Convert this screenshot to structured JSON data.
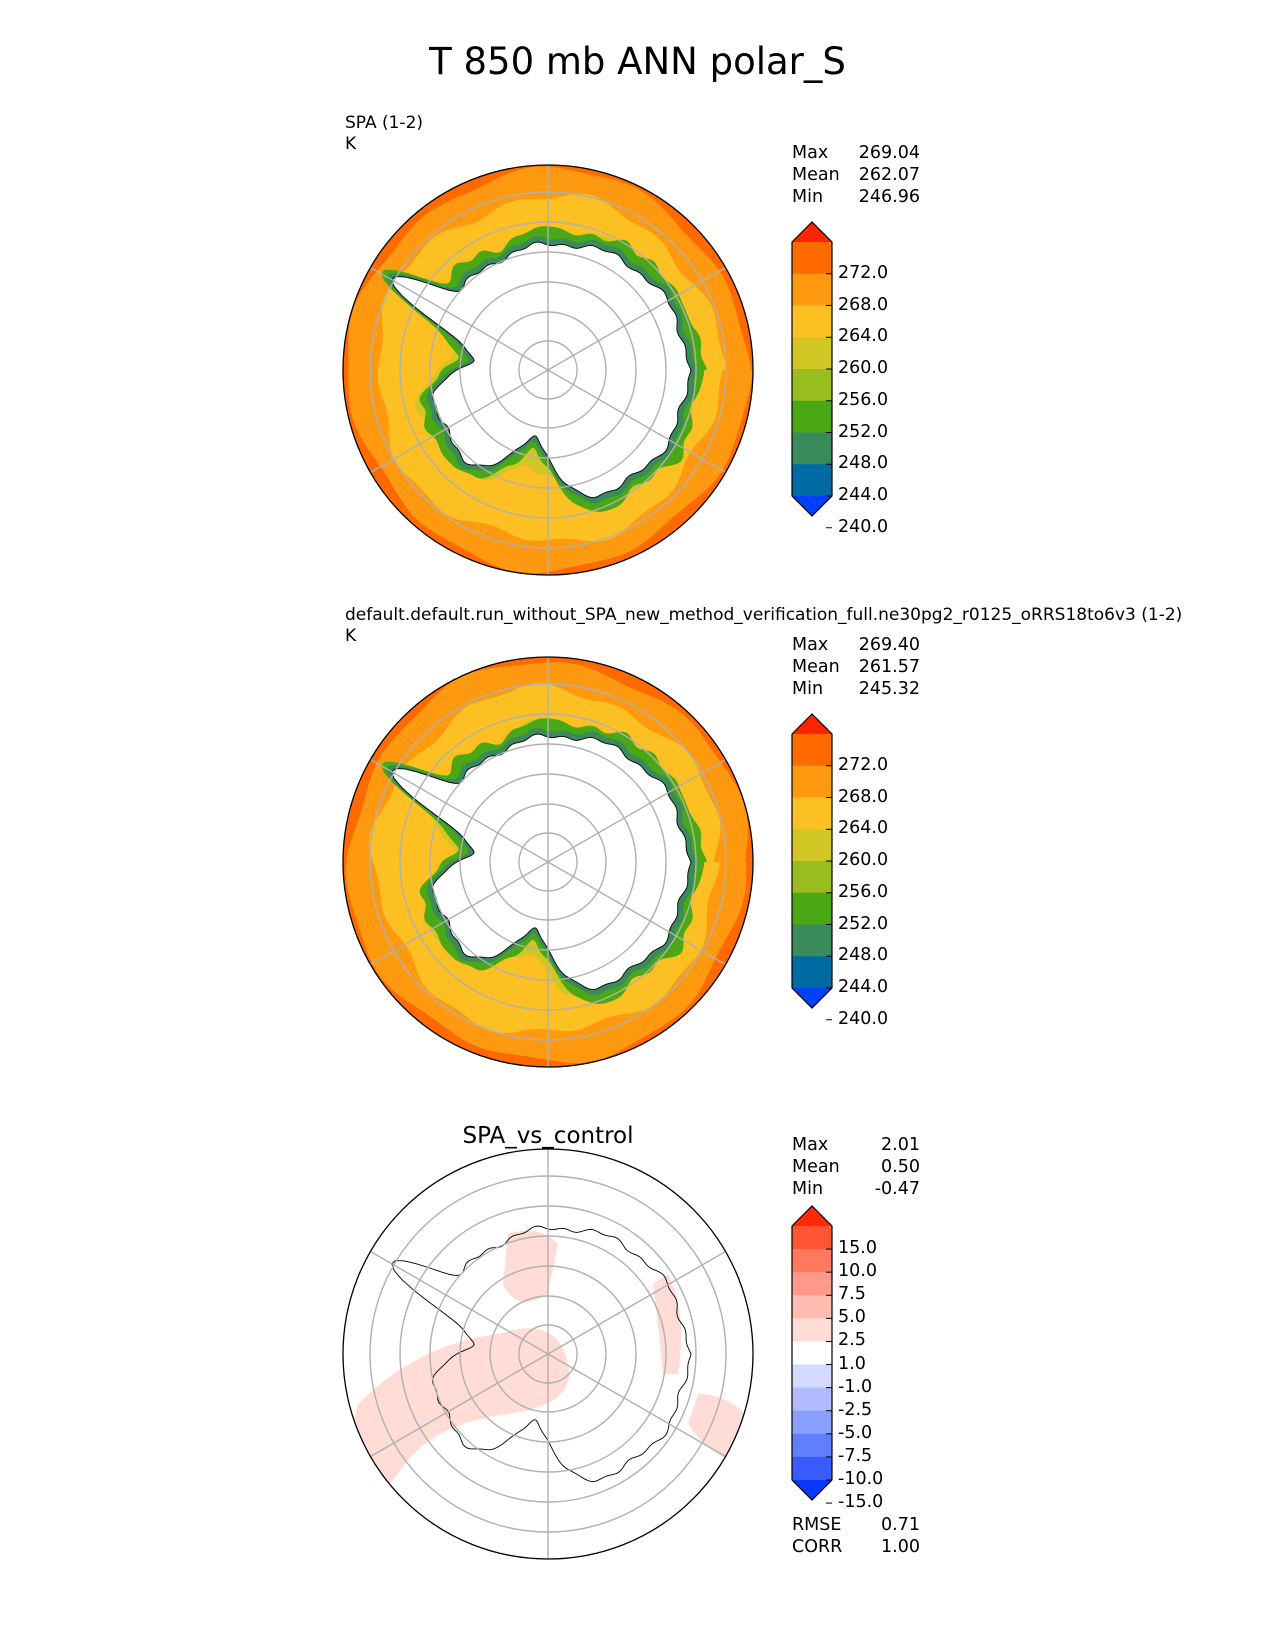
{
  "title": "T 850 mb ANN polar_S",
  "panels": [
    {
      "id": "test",
      "heading": "SPA (1-2)",
      "units": "K",
      "center_title": "",
      "stats": [
        {
          "label": "Max",
          "value": "269.04"
        },
        {
          "label": "Mean",
          "value": "262.07"
        },
        {
          "label": "Min",
          "value": "246.96"
        }
      ],
      "colorbar": {
        "ticks": [
          "272.0",
          "268.0",
          "264.0",
          "260.0",
          "256.0",
          "252.0",
          "248.0",
          "244.0",
          "240.0"
        ],
        "colors": [
          "#ff2400",
          "#ff6a00",
          "#ff9a10",
          "#fdc022",
          "#d1c623",
          "#98bd1e",
          "#4aa814",
          "#3a8a5c",
          "#006aa3",
          "#0040ff"
        ]
      },
      "extra_stats": []
    },
    {
      "id": "reference",
      "heading": "default.default.run_without_SPA_new_method_verification_full.ne30pg2_r0125_oRRS18to6v3 (1-2)",
      "units": "K",
      "center_title": "",
      "stats": [
        {
          "label": "Max",
          "value": "269.40"
        },
        {
          "label": "Mean",
          "value": "261.57"
        },
        {
          "label": "Min",
          "value": "245.32"
        }
      ],
      "colorbar": {
        "ticks": [
          "272.0",
          "268.0",
          "264.0",
          "260.0",
          "256.0",
          "252.0",
          "248.0",
          "244.0",
          "240.0"
        ],
        "colors": [
          "#ff2400",
          "#ff6a00",
          "#ff9a10",
          "#fdc022",
          "#d1c623",
          "#98bd1e",
          "#4aa814",
          "#3a8a5c",
          "#006aa3",
          "#0040ff"
        ]
      },
      "extra_stats": []
    },
    {
      "id": "difference",
      "heading": "",
      "units": "",
      "center_title": "SPA_vs_control",
      "stats": [
        {
          "label": "Max",
          "value": "2.01"
        },
        {
          "label": "Mean",
          "value": "0.50"
        },
        {
          "label": "Min",
          "value": "-0.47"
        }
      ],
      "colorbar": {
        "ticks": [
          "15.0",
          "10.0",
          "7.5",
          "5.0",
          "2.5",
          "1.0",
          "-1.0",
          "-2.5",
          "-5.0",
          "-7.5",
          "-10.0",
          "-15.0"
        ],
        "colors": [
          "#ff2a00",
          "#ff5535",
          "#ff7860",
          "#ff9a8a",
          "#ffbcb0",
          "#ffdcd6",
          "#ffffff",
          "#d4daff",
          "#b0bcff",
          "#8aa0ff",
          "#607eff",
          "#3a5cff",
          "#0a38ff"
        ]
      },
      "extra_stats": [
        {
          "label": "RMSE",
          "value": "0.71"
        },
        {
          "label": "CORR",
          "value": "1.00"
        }
      ]
    }
  ],
  "chart_data": {
    "type": "heatmap",
    "projection": "south polar stereographic",
    "map_fields": [
      {
        "panel": "SPA (1-2)",
        "variable": "T 850 mb",
        "units": "K",
        "max": 269.04,
        "mean": 262.07,
        "min": 246.96,
        "contour_levels": [
          240,
          244,
          248,
          252,
          256,
          260,
          264,
          268,
          272
        ]
      },
      {
        "panel": "default.default.run_without_SPA_new_method_verification_full.ne30pg2_r0125_oRRS18to6v3 (1-2)",
        "variable": "T 850 mb",
        "units": "K",
        "max": 269.4,
        "mean": 261.57,
        "min": 245.32,
        "contour_levels": [
          240,
          244,
          248,
          252,
          256,
          260,
          264,
          268,
          272
        ]
      },
      {
        "panel": "SPA_vs_control",
        "variable": "T 850 mb difference",
        "units": "",
        "max": 2.01,
        "mean": 0.5,
        "min": -0.47,
        "contour_levels": [
          -15.0,
          -10.0,
          -7.5,
          -5.0,
          -2.5,
          -1.0,
          1.0,
          2.5,
          5.0,
          7.5,
          10.0,
          15.0
        ],
        "rmse": 0.71,
        "corr": 1.0
      }
    ]
  }
}
